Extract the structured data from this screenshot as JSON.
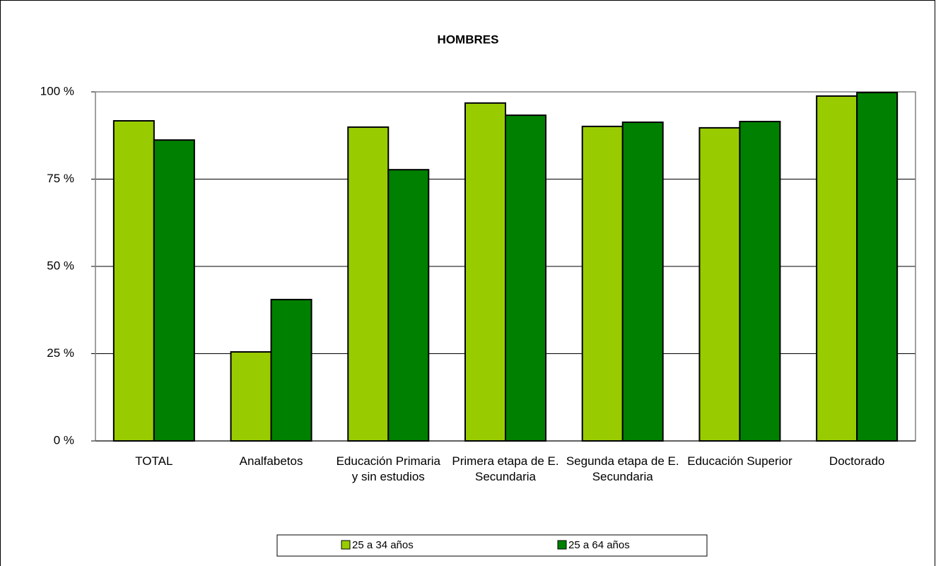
{
  "chart_data": {
    "type": "bar",
    "title": "HOMBRES",
    "categories": [
      "TOTAL",
      "Analfabetos",
      "Educación Primaria y sin estudios",
      "Primera etapa de E. Secundaria",
      "Segunda etapa de E. Secundaria",
      "Educación Superior",
      "Doctorado"
    ],
    "series": [
      {
        "name": "25 a 34 años",
        "color": "#99cc00",
        "values": [
          91.7,
          25.5,
          89.9,
          96.8,
          90.1,
          89.7,
          98.8
        ]
      },
      {
        "name": "25 a 64 años",
        "color": "#008000",
        "values": [
          86.2,
          40.5,
          77.7,
          93.3,
          91.3,
          91.5,
          99.8
        ]
      }
    ],
    "ylim": [
      0,
      100
    ],
    "yticks": [
      {
        "value": 0,
        "label": "0 %"
      },
      {
        "value": 25,
        "label": "25 %"
      },
      {
        "value": 50,
        "label": "50 %"
      },
      {
        "value": 75,
        "label": "75 %"
      },
      {
        "value": 100,
        "label": "100 %"
      }
    ],
    "grid": true
  }
}
